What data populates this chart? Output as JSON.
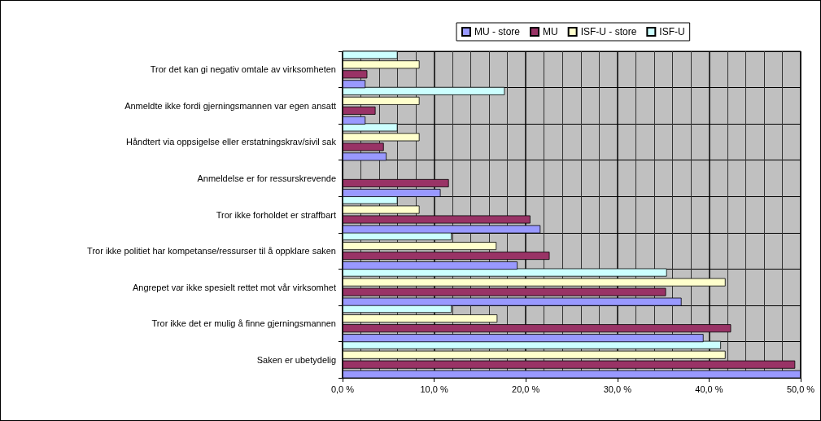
{
  "chart_data": {
    "type": "bar",
    "orientation": "horizontal",
    "categories": [
      "Tror det kan gi negativ omtale av virksomheten",
      "Anmeldte ikke fordi gjerningsmannen var egen ansatt",
      "Håndtert via oppsigelse eller erstatningskrav/sivil sak",
      "Anmeldelse er for ressurskrevende",
      "Tror ikke forholdet er straffbart",
      "Tror ikke politiet har kompetanse/ressurser til å oppklare saken",
      "Angrepet var ikke spesielt rettet mot vår virksomhet",
      "Tror ikke det er mulig å finne gjerningsmannen",
      "Saken er ubetydelig"
    ],
    "series": [
      {
        "name": "MU - store",
        "color": "#9999ff",
        "values": [
          2.5,
          2.5,
          4.8,
          10.7,
          21.6,
          19.1,
          37.0,
          39.4,
          50.0
        ]
      },
      {
        "name": "MU",
        "color": "#993366",
        "values": [
          2.7,
          3.6,
          4.5,
          11.6,
          20.5,
          22.6,
          35.3,
          42.4,
          49.4
        ]
      },
      {
        "name": "ISF-U - store",
        "color": "#ffffcc",
        "values": [
          8.4,
          8.4,
          8.4,
          0,
          8.4,
          16.8,
          41.8,
          16.9,
          41.8
        ]
      },
      {
        "name": "ISF-U",
        "color": "#ccffff",
        "values": [
          6.0,
          17.7,
          6.0,
          0,
          6.0,
          11.9,
          35.4,
          11.9,
          41.3
        ]
      }
    ],
    "xlim": [
      0,
      50
    ],
    "xticks": [
      {
        "value": 0,
        "label": "0,0 %"
      },
      {
        "value": 10,
        "label": "10,0 %"
      },
      {
        "value": 20,
        "label": "20,0 %"
      },
      {
        "value": 30,
        "label": "30,0 %"
      },
      {
        "value": 40,
        "label": "40,0 %"
      },
      {
        "value": 50,
        "label": "50,0 %"
      }
    ],
    "grid": true,
    "legend": "top"
  }
}
